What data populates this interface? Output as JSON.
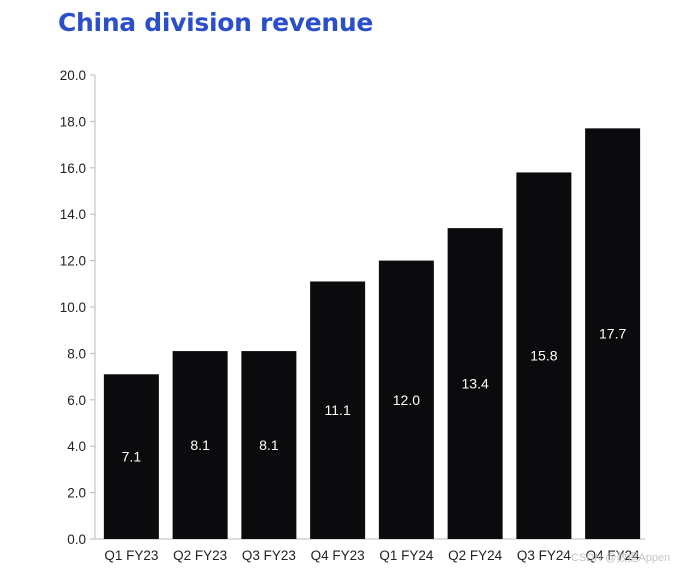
{
  "chart_data": {
    "type": "bar",
    "title": "China division revenue",
    "xlabel": "",
    "ylabel": "",
    "categories": [
      "Q1 FY23",
      "Q2 FY23",
      "Q3 FY23",
      "Q4 FY23",
      "Q1 FY24",
      "Q2 FY24",
      "Q3 FY24",
      "Q4 FY24"
    ],
    "values": [
      7.1,
      8.1,
      8.1,
      11.1,
      12.0,
      13.4,
      15.8,
      17.7
    ],
    "data_labels": [
      "7.1",
      "8.1",
      "8.1",
      "11.1",
      "12.0",
      "13.4",
      "15.8",
      "17.7"
    ],
    "ylim": [
      0,
      20
    ],
    "yticks": [
      "0.0",
      "2.0",
      "4.0",
      "6.0",
      "8.0",
      "10.0",
      "12.0",
      "14.0",
      "16.0",
      "18.0",
      "20.0"
    ],
    "grid": false,
    "legend": "none",
    "colors": {
      "bar": "#0b0b0d",
      "bar_label": "#ffffff",
      "title": "#2a4fc8",
      "axis": "#b8b8b8",
      "tick_text": "#222222"
    }
  },
  "watermark": "CSDN @数据Appen"
}
